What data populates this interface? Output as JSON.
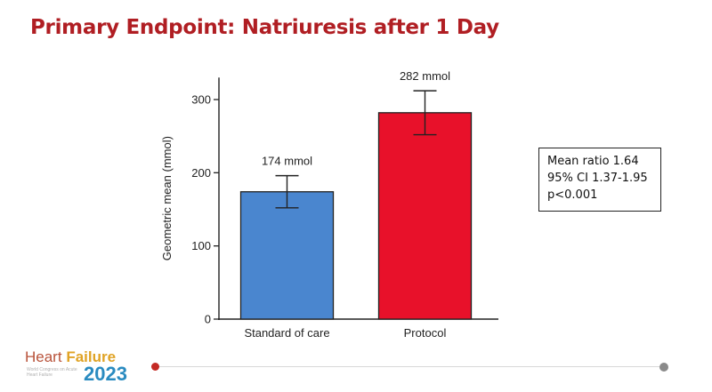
{
  "title": "Primary Endpoint: Natriuresis after 1 Day",
  "chart_data": {
    "type": "bar",
    "categories": [
      "Standard of care",
      "Protocol"
    ],
    "values": [
      174,
      282
    ],
    "error_low": [
      152,
      252
    ],
    "error_high": [
      196,
      312
    ],
    "data_labels": [
      "174 mmol",
      "282 mmol"
    ],
    "colors": [
      "#4a86cf",
      "#e8112a"
    ],
    "ylabel": "Geometric mean (mmol)",
    "xlabel": "",
    "ylim": [
      0,
      330
    ],
    "yticks": [
      0,
      100,
      200,
      300
    ],
    "grid": false
  },
  "stats_box": {
    "line1": "Mean ratio 1.64",
    "line2": "95% CI 1.37-1.95",
    "line3": "p<0.001"
  },
  "logo": {
    "word1": "Heart",
    "word2": "Failure",
    "year": "2023",
    "tagline": "World Congress on Acute Heart Failure"
  },
  "progress": {
    "fraction": 0.0
  }
}
